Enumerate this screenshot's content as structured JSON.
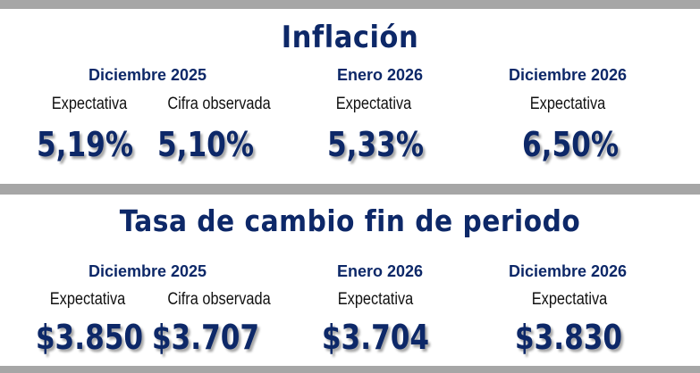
{
  "inflation": {
    "title": "Inflación",
    "periods": {
      "dic2025": "Diciembre 2025",
      "ene2026": "Enero 2026",
      "dic2026": "Diciembre 2026"
    },
    "labels": {
      "expectativa": "Expectativa",
      "cifra_observada": "Cifra observada"
    },
    "values": {
      "dic2025_expectativa": "5,19%",
      "dic2025_observada": "5,10%",
      "ene2026_expectativa": "5,33%",
      "dic2026_expectativa": "6,50%"
    }
  },
  "exchange_rate": {
    "title": "Tasa de cambio fin de periodo",
    "periods": {
      "dic2025": "Diciembre 2025",
      "ene2026": "Enero 2026",
      "dic2026": "Diciembre 2026"
    },
    "labels": {
      "expectativa": "Expectativa",
      "cifra_observada": "Cifra observada"
    },
    "values": {
      "dic2025_expectativa": "$3.850",
      "dic2025_observada": "$3.707",
      "ene2026_expectativa": "$3.704",
      "dic2026_expectativa": "$3.830"
    }
  }
}
